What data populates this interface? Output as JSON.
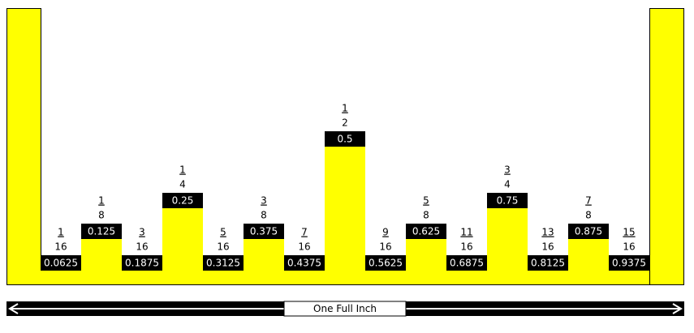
{
  "marks": [
    {
      "numerator": 1,
      "denominator": 16,
      "decimal": 0.0625
    },
    {
      "numerator": 1,
      "denominator": 8,
      "decimal": 0.125
    },
    {
      "numerator": 3,
      "denominator": 16,
      "decimal": 0.1875
    },
    {
      "numerator": 1,
      "denominator": 4,
      "decimal": 0.25
    },
    {
      "numerator": 5,
      "denominator": 16,
      "decimal": 0.3125
    },
    {
      "numerator": 3,
      "denominator": 8,
      "decimal": 0.375
    },
    {
      "numerator": 7,
      "denominator": 16,
      "decimal": 0.4375
    },
    {
      "numerator": 1,
      "denominator": 2,
      "decimal": 0.5
    },
    {
      "numerator": 9,
      "denominator": 16,
      "decimal": 0.5625
    },
    {
      "numerator": 5,
      "denominator": 8,
      "decimal": 0.625
    },
    {
      "numerator": 11,
      "denominator": 16,
      "decimal": 0.6875
    },
    {
      "numerator": 3,
      "denominator": 4,
      "decimal": 0.75
    },
    {
      "numerator": 13,
      "denominator": 16,
      "decimal": 0.8125
    },
    {
      "numerator": 7,
      "denominator": 8,
      "decimal": 0.875
    },
    {
      "numerator": 15,
      "denominator": 16,
      "decimal": 0.9375
    }
  ],
  "ruler_label": "One Full Inch"
}
